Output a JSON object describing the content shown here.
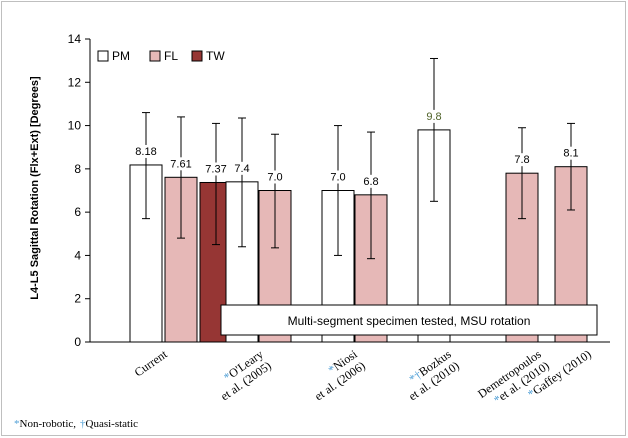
{
  "chart_data": {
    "type": "bar",
    "ylabel": "L4-L5 Sagittal Rotation (Flx+Ext) [Degrees]",
    "ylim": [
      0,
      14
    ],
    "yticks": [
      "0",
      "2",
      "4",
      "6",
      "8",
      "10",
      "12",
      "14"
    ],
    "grid": false,
    "legend_position": "top-left",
    "legend": [
      {
        "name": "PM",
        "color": "#ffffff"
      },
      {
        "name": "FL",
        "color": "#e6b8b7"
      },
      {
        "name": "TW",
        "color": "#963634"
      }
    ],
    "groups": [
      {
        "label_lines": [
          {
            "mark": "",
            "text": "Current"
          }
        ],
        "bars": [
          {
            "series": "PM",
            "value": 8.18,
            "label": "8.18",
            "err_low": 5.7,
            "err_high": 10.6
          },
          {
            "series": "FL",
            "value": 7.61,
            "label": "7.61",
            "err_low": 4.8,
            "err_high": 10.4
          },
          {
            "series": "TW",
            "value": 7.37,
            "label": "7.37",
            "err_low": 4.5,
            "err_high": 10.1
          }
        ]
      },
      {
        "label_lines": [
          {
            "mark": "*",
            "text": "O'Leary"
          },
          {
            "mark": "",
            "text": "et al. (2005)"
          }
        ],
        "bars": [
          {
            "series": "PM",
            "value": 7.4,
            "label": "7.4",
            "err_low": 4.4,
            "err_high": 10.35
          },
          {
            "series": "FL",
            "value": 7.0,
            "label": "7.0",
            "err_low": 4.35,
            "err_high": 9.6
          }
        ]
      },
      {
        "label_lines": [
          {
            "mark": "*",
            "text": "Niosi"
          },
          {
            "mark": "",
            "text": "et al. (2006)"
          }
        ],
        "bars": [
          {
            "series": "PM",
            "value": 7.0,
            "label": "7.0",
            "err_low": 4.0,
            "err_high": 10.0
          },
          {
            "series": "FL",
            "value": 6.8,
            "label": "6.8",
            "err_low": 3.85,
            "err_high": 9.7
          }
        ]
      },
      {
        "label_lines": [
          {
            "mark": "*†",
            "text": "Bozkus"
          },
          {
            "mark": "",
            "text": "et al. (2010)"
          }
        ],
        "bars": [
          {
            "series": "PM",
            "value": 9.8,
            "label": "9.8",
            "err_low": 6.5,
            "err_high": 13.1
          }
        ]
      },
      {
        "label_lines": [
          {
            "mark": "",
            "text": "Demetropoulos"
          },
          {
            "mark": "*",
            "text": "et al. (2010)"
          }
        ],
        "bars": [
          {
            "series": "FL",
            "value": 7.8,
            "label": "7.8",
            "err_low": 5.7,
            "err_high": 9.9
          }
        ]
      },
      {
        "label_lines": [
          {
            "mark": "*",
            "text": "Gaffey (2010)"
          }
        ],
        "bars": [
          {
            "series": "FL",
            "value": 8.1,
            "label": "8.1",
            "err_low": 6.1,
            "err_high": 10.1
          }
        ]
      }
    ],
    "annotation": "Multi-segment specimen tested, MSU rotation",
    "footnote": {
      "mark1": "*",
      "text1": "Non-robotic,",
      "mark2": "†",
      "text2": "Quasi-static"
    }
  }
}
